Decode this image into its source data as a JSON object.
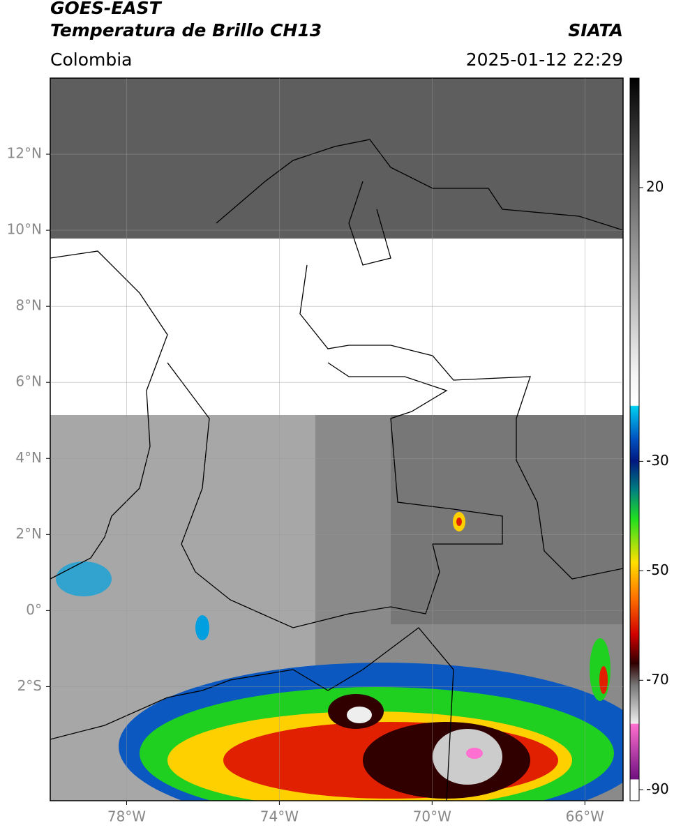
{
  "chart_data": {
    "type": "map",
    "title": "GOES-EAST",
    "subtitle": "Temperatura de Brillo CH13",
    "region": "Colombia",
    "source": "SIATA",
    "datetime": "2025-01-12 22:29",
    "xlim": [
      -80,
      -65
    ],
    "ylim": [
      -5,
      14
    ],
    "xticks": [
      {
        "value": -78,
        "label": "78°W"
      },
      {
        "value": -74,
        "label": "74°W"
      },
      {
        "value": -70,
        "label": "70°W"
      },
      {
        "value": -66,
        "label": "66°W"
      }
    ],
    "yticks": [
      {
        "value": -2,
        "label": "2°S"
      },
      {
        "value": 0,
        "label": "0°"
      },
      {
        "value": 2,
        "label": "2°N"
      },
      {
        "value": 4,
        "label": "4°N"
      },
      {
        "value": 6,
        "label": "6°N"
      },
      {
        "value": 8,
        "label": "8°N"
      },
      {
        "value": 10,
        "label": "10°N"
      },
      {
        "value": 12,
        "label": "12°N"
      }
    ],
    "grid": true,
    "colorbar": {
      "lim": [
        -92,
        40
      ],
      "ticks": [
        20,
        -30,
        -50,
        -70,
        -90
      ]
    }
  }
}
